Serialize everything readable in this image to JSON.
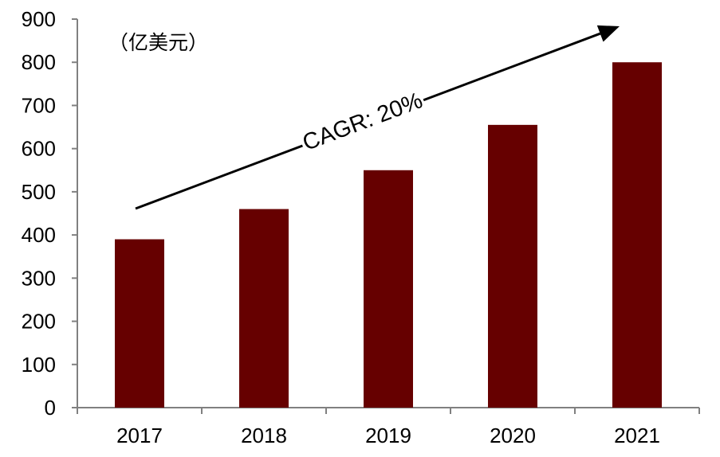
{
  "chart_data": {
    "type": "bar",
    "title": "",
    "xlabel": "",
    "ylabel": "",
    "unit_label": "（亿美元）",
    "categories": [
      "2017",
      "2018",
      "2019",
      "2020",
      "2021"
    ],
    "values": [
      390,
      460,
      550,
      655,
      800
    ],
    "ylim": [
      0,
      900
    ],
    "yticks": [
      "0",
      "100",
      "200",
      "300",
      "400",
      "500",
      "600",
      "700",
      "800",
      "900"
    ],
    "grid": false,
    "legend": "none",
    "bar_color": "#660000",
    "annotation": {
      "text": "CAGR: 20%",
      "type": "arrow"
    }
  }
}
